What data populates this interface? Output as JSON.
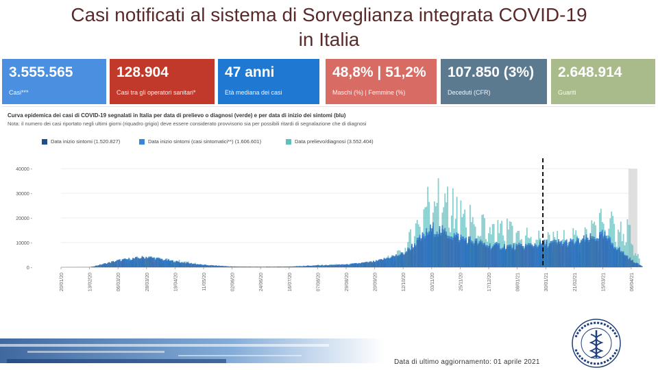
{
  "page": {
    "title_line1": "Casi notificati al sistema di Sorveglianza integrata COVID-19",
    "title_line2": "in Italia",
    "update_text": "Data di ultimo aggiornamento: 01 aprile 2021"
  },
  "cards": [
    {
      "value": "3.555.565",
      "label": "Casi***",
      "color": "#4a8fe0"
    },
    {
      "value": "128.904",
      "label": "Casi tra gli operatori sanitari*",
      "color": "#c0392b"
    },
    {
      "value": "47 anni",
      "label": "Età mediana dei casi",
      "color": "#1f78d1"
    },
    {
      "value": "48,8% | 51,2%",
      "label": "Maschi (%) | Femmine (%)",
      "color": "#d86b63"
    },
    {
      "value": "107.850 (3%)",
      "label": "Deceduti (CFR)",
      "color": "#5b7a90"
    },
    {
      "value": "2.648.914",
      "label": "Guariti",
      "color": "#a9bb8a"
    }
  ],
  "panel": {
    "title": "Curva epidemica dei casi di COVID-19 segnalati in Italia per data di prelievo o diagnosi (verde) e per data di inizio dei sintomi (blu)",
    "note": "Nota: il numero dei casi riportato negli ultimi giorni (riquadro grigio) deve essere considerato provvisorio sia per possibili ritardi di segnalazione che di diagnosi"
  },
  "chart_data": {
    "type": "bar",
    "title": "Curva epidemica dei casi di COVID-19 segnalati in Italia",
    "series": [
      {
        "name": "Data inizio sintomi (1.520.827)",
        "color": "#1f4e8c"
      },
      {
        "name": "Data inizio sintomi (casi sintomatici**) (1.606.601)",
        "color": "#3a86d4"
      },
      {
        "name": "Data prelievo/diagnosi (3.552.404)",
        "color": "#5fbfbf"
      }
    ],
    "yticks": [
      "40000",
      "30000",
      "20000",
      "10000",
      "0"
    ],
    "ylim": [
      0,
      42000
    ],
    "xticks": [
      "20/01/20",
      "13/02/20",
      "06/03/20",
      "28/03/20",
      "19/04/20",
      "11/05/20",
      "02/06/20",
      "24/06/20",
      "16/07/20",
      "07/08/20",
      "29/08/20",
      "20/09/20",
      "12/10/20",
      "03/11/20",
      "25/11/20",
      "17/12/20",
      "08/01/21",
      "30/01/21",
      "21/02/21",
      "15/03/21",
      "06/04/21"
    ],
    "xticks_visible": [
      "20/01/20",
      "13/02/20",
      "06/03/20",
      "28/03/20",
      "19/04/20",
      "11/05/20",
      "02/06/20",
      "24/06/20",
      "16/07/20",
      "07/08/20",
      "29/08/20",
      "20/09/20",
      "12/10/20",
      "03/11/20",
      "25/11/20",
      "17/12/20",
      "08/01/21",
      "30/01/21",
      "21/02/21",
      "15/03/21",
      "06/04/21"
    ],
    "anchors_sym": [
      [
        0,
        0
      ],
      [
        1,
        50
      ],
      [
        2,
        3000
      ],
      [
        3,
        4500
      ],
      [
        4,
        2500
      ],
      [
        5,
        1000
      ],
      [
        6,
        300
      ],
      [
        7,
        200
      ],
      [
        8,
        300
      ],
      [
        9,
        800
      ],
      [
        10,
        1200
      ],
      [
        11,
        2500
      ],
      [
        12,
        6000
      ],
      [
        13,
        17000
      ],
      [
        14,
        13000
      ],
      [
        15,
        9500
      ],
      [
        16,
        9000
      ],
      [
        17,
        10500
      ],
      [
        18,
        11000
      ],
      [
        19,
        14000
      ],
      [
        20,
        3000
      ],
      [
        20.4,
        200
      ]
    ],
    "anchors_diag": [
      [
        0,
        0
      ],
      [
        1,
        100
      ],
      [
        2,
        2000
      ],
      [
        3,
        5000
      ],
      [
        4,
        3000
      ],
      [
        5,
        1000
      ],
      [
        6,
        300
      ],
      [
        7,
        250
      ],
      [
        8,
        300
      ],
      [
        9,
        1000
      ],
      [
        10,
        1300
      ],
      [
        11,
        2000
      ],
      [
        12,
        7000
      ],
      [
        13,
        36000
      ],
      [
        14,
        25000
      ],
      [
        15,
        18000
      ],
      [
        16,
        17000
      ],
      [
        17,
        13000
      ],
      [
        18,
        14000
      ],
      [
        19,
        23000
      ],
      [
        20,
        16000
      ],
      [
        20.3,
        2000
      ]
    ],
    "dashed_line_at_tick": 16.9,
    "provisional_from_tick": 19.9
  }
}
